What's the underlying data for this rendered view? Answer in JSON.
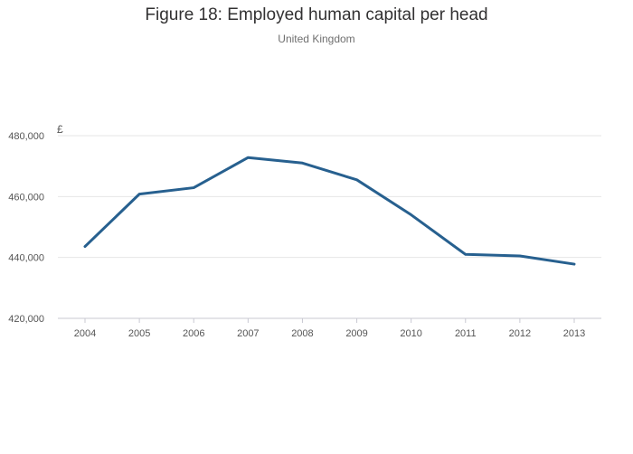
{
  "chart_data": {
    "type": "line",
    "title": "Figure 18: Employed human capital per head",
    "subtitle": "United Kingdom",
    "ylabel": "£",
    "xlabel": "",
    "x": [
      "2004",
      "2005",
      "2006",
      "2007",
      "2008",
      "2009",
      "2010",
      "2011",
      "2012",
      "2013"
    ],
    "series": [
      {
        "values": [
          443600,
          460800,
          462900,
          472800,
          471000,
          465500,
          454000,
          441000,
          440500,
          437800
        ],
        "color": "#27608f"
      }
    ],
    "ylim": [
      420000,
      480000
    ],
    "yticks": [
      420000,
      440000,
      460000,
      480000
    ],
    "ytick_labels": [
      "420,000",
      "440,000",
      "460,000",
      "480,000"
    ],
    "grid": true,
    "legend": "none"
  }
}
